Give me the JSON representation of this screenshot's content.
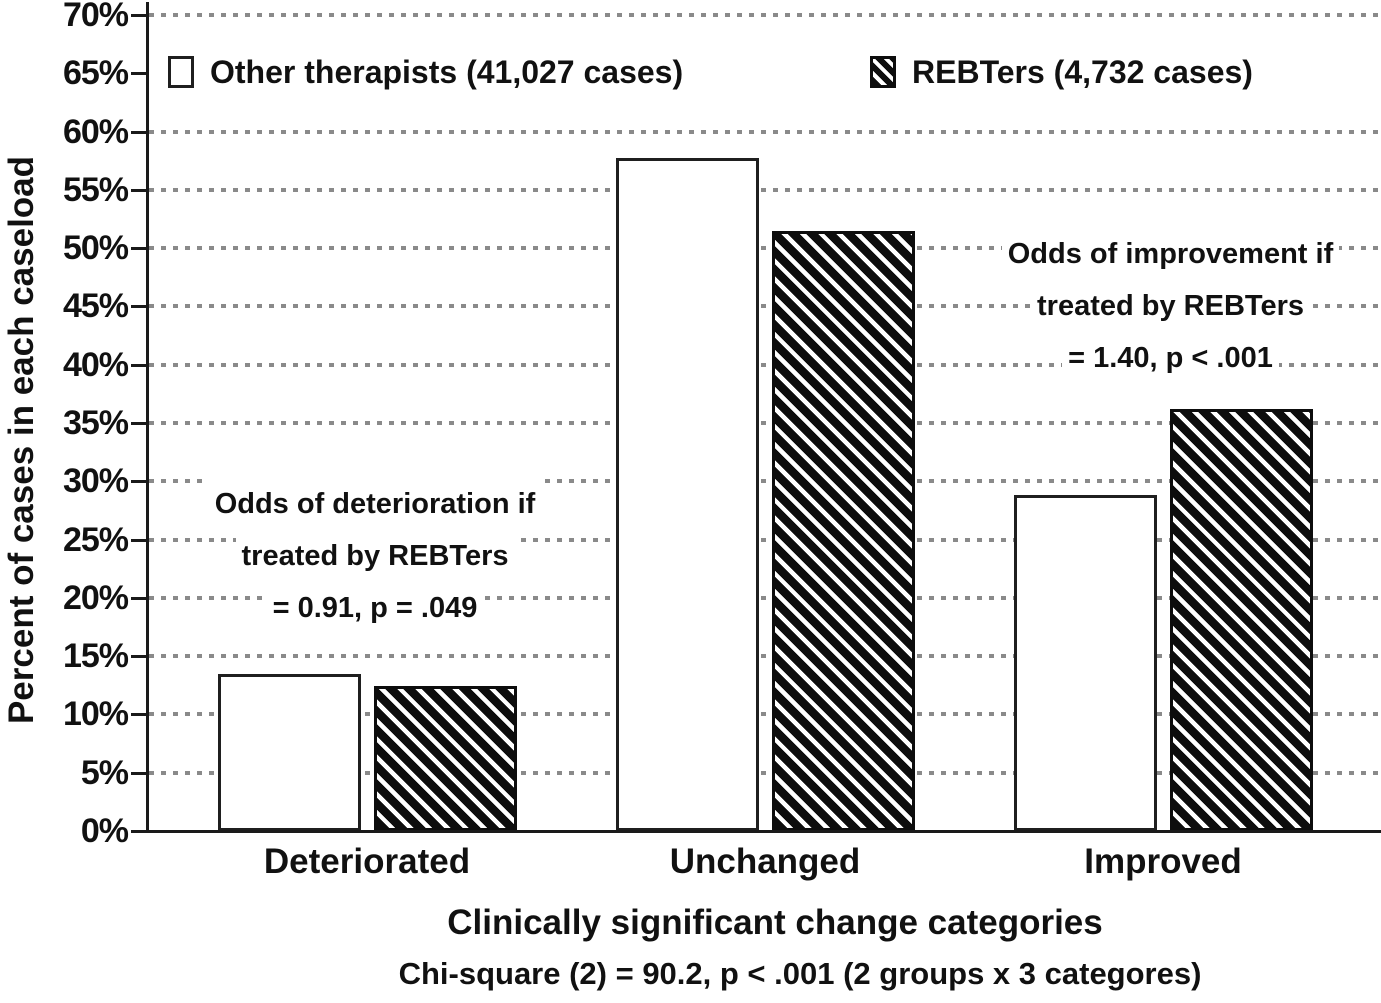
{
  "figure": {
    "y_axis_label": "Percent of cases in each caseload",
    "x_axis_label": "Clinically significant change categories",
    "footnote": "Chi-square (2) = 90.2, p < .001 (2 groups x 3 categores)"
  },
  "legend": [
    {
      "label": "Other therapists (41,027 cases)",
      "swatch": "white-square"
    },
    {
      "label": "REBTers (4,732 cases)",
      "swatch": "diagonal-hatch-square"
    }
  ],
  "chart_data": {
    "type": "bar",
    "title": "",
    "categories": [
      "Deteriorated",
      "Unchanged",
      "Improved"
    ],
    "series": [
      {
        "name": "Other therapists (41,027 cases)",
        "pattern": "white",
        "values": [
          13.5,
          57.7,
          28.8
        ]
      },
      {
        "name": "REBTers (4,732 cases)",
        "pattern": "hatch",
        "values": [
          12.4,
          51.5,
          36.2
        ]
      }
    ],
    "xlabel": "Clinically significant change categories",
    "ylabel": "Percent of cases in each caseload",
    "ylim": [
      0,
      70
    ],
    "ytick_step": 5,
    "ytick_suffix": "%",
    "grid": "dotted-horizontal",
    "legend_position": "top-inside",
    "annotations": [
      {
        "id": "deterioration-odds",
        "lines": [
          "Odds of deterioration if",
          "treated by REBTers",
          "= 0.91, p = .049"
        ]
      },
      {
        "id": "improvement-odds",
        "lines": [
          "Odds of improvement if",
          "treated by REBTers",
          "= 1.40, p < .001"
        ]
      }
    ]
  },
  "colors": {
    "background": "#ffffff",
    "bar_fill": "#ffffff",
    "bar_border": "#1f1f1f",
    "hatch": "#0d0d0d",
    "grid_dot": "#8a8a8a",
    "text": "#111111"
  }
}
